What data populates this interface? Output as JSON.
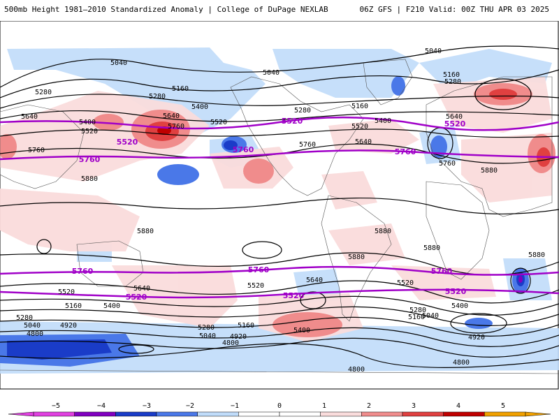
{
  "header": {
    "title_left": "500mb Height 1981–2010 Standardized Anomaly | College of DuPage NEXLAB",
    "title_right": "06Z GFS | F210 Valid: 00Z THU APR 03 2025"
  },
  "colors": {
    "neg5": "#e040e0",
    "neg4": "#8000c0",
    "neg3": "#1a3cc8",
    "neg2": "#4a78e8",
    "neg1": "#c0dcfa",
    "pos1": "#fadcdc",
    "pos2": "#f08c8c",
    "pos3": "#e04040",
    "pos4": "#c00000",
    "pos5": "#f0a000",
    "highlight_contour": "#a000c8"
  },
  "contour_labels": [
    {
      "text": "5040",
      "kind": "height"
    },
    {
      "text": "5040",
      "kind": "height"
    },
    {
      "text": "5040",
      "kind": "height"
    },
    {
      "text": "5160",
      "kind": "height"
    },
    {
      "text": "5160",
      "kind": "height"
    },
    {
      "text": "5160",
      "kind": "height"
    },
    {
      "text": "5280",
      "kind": "height"
    },
    {
      "text": "5280",
      "kind": "height"
    },
    {
      "text": "5280",
      "kind": "height"
    },
    {
      "text": "5280",
      "kind": "height"
    },
    {
      "text": "5400",
      "kind": "height"
    },
    {
      "text": "5400",
      "kind": "height"
    },
    {
      "text": "5400",
      "kind": "height"
    },
    {
      "text": "5520",
      "kind": "height"
    },
    {
      "text": "5520",
      "kind": "height"
    },
    {
      "text": "5520",
      "kind": "height"
    },
    {
      "text": "5640",
      "kind": "height"
    },
    {
      "text": "5640",
      "kind": "height"
    },
    {
      "text": "5640",
      "kind": "height"
    },
    {
      "text": "5760",
      "kind": "height"
    },
    {
      "text": "5760",
      "kind": "height"
    },
    {
      "text": "5760",
      "kind": "height"
    },
    {
      "text": "5760",
      "kind": "height"
    },
    {
      "text": "5880",
      "kind": "height"
    },
    {
      "text": "5880",
      "kind": "height"
    },
    {
      "text": "5880",
      "kind": "height"
    },
    {
      "text": "5880",
      "kind": "height"
    },
    {
      "text": "5880",
      "kind": "height"
    },
    {
      "text": "5520",
      "kind": "highlight"
    },
    {
      "text": "5520",
      "kind": "highlight"
    },
    {
      "text": "5520",
      "kind": "highlight"
    },
    {
      "text": "5760",
      "kind": "highlight"
    },
    {
      "text": "5760",
      "kind": "highlight"
    },
    {
      "text": "5760",
      "kind": "highlight"
    },
    {
      "text": "5760",
      "kind": "highlight"
    },
    {
      "text": "5760",
      "kind": "highlight"
    },
    {
      "text": "5760",
      "kind": "highlight"
    },
    {
      "text": "5520",
      "kind": "highlight"
    },
    {
      "text": "5520",
      "kind": "highlight"
    },
    {
      "text": "5520",
      "kind": "highlight"
    },
    {
      "text": "5640",
      "kind": "height"
    },
    {
      "text": "5640",
      "kind": "height"
    },
    {
      "text": "5520",
      "kind": "height"
    },
    {
      "text": "5520",
      "kind": "height"
    },
    {
      "text": "5520",
      "kind": "height"
    },
    {
      "text": "5400",
      "kind": "height"
    },
    {
      "text": "5400",
      "kind": "height"
    },
    {
      "text": "5400",
      "kind": "height"
    },
    {
      "text": "5280",
      "kind": "height"
    },
    {
      "text": "5280",
      "kind": "height"
    },
    {
      "text": "5280",
      "kind": "height"
    },
    {
      "text": "5160",
      "kind": "height"
    },
    {
      "text": "5160",
      "kind": "height"
    },
    {
      "text": "5160",
      "kind": "height"
    },
    {
      "text": "5040",
      "kind": "height"
    },
    {
      "text": "5040",
      "kind": "height"
    },
    {
      "text": "5040",
      "kind": "height"
    },
    {
      "text": "4920",
      "kind": "height"
    },
    {
      "text": "4920",
      "kind": "height"
    },
    {
      "text": "4920",
      "kind": "height"
    },
    {
      "text": "4800",
      "kind": "height"
    },
    {
      "text": "4800",
      "kind": "height"
    },
    {
      "text": "4800",
      "kind": "height"
    },
    {
      "text": "4800",
      "kind": "height"
    },
    {
      "text": "5640",
      "kind": "height"
    },
    {
      "text": "5880",
      "kind": "height"
    },
    {
      "text": "5880",
      "kind": "height"
    }
  ],
  "legend": {
    "ticks": [
      "−5",
      "−4",
      "−3",
      "−2",
      "−1",
      "0",
      "1",
      "2",
      "3",
      "4",
      "5"
    ]
  }
}
